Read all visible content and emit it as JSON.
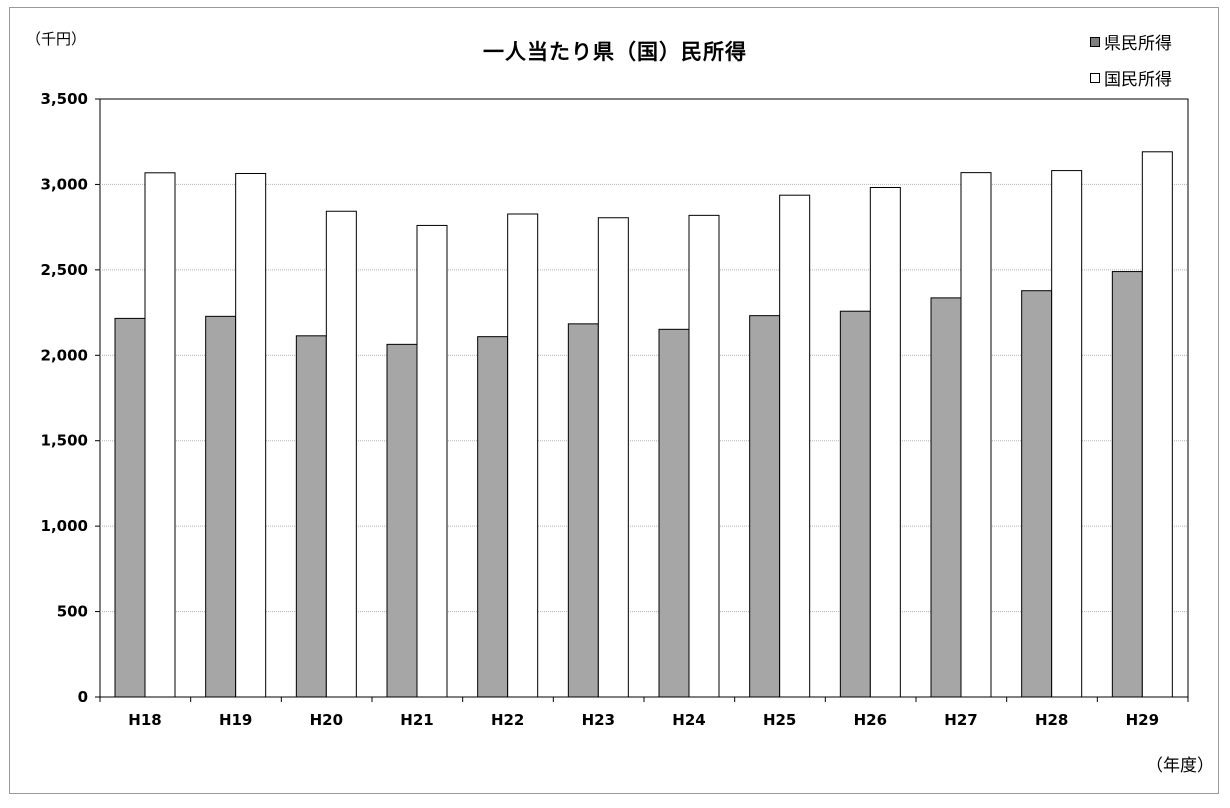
{
  "chart_data": {
    "type": "bar",
    "title": "一人当たり県（国）民所得",
    "ylabel": "（千円）",
    "xlabel": "（年度）",
    "ylim": [
      0,
      3500
    ],
    "yticks": [
      "0",
      "500",
      "1,000",
      "1,500",
      "2,000",
      "2,500",
      "3,000",
      "3,500"
    ],
    "ytick_values": [
      0,
      500,
      1000,
      1500,
      2000,
      2500,
      3000,
      3500
    ],
    "categories": [
      "H18",
      "H19",
      "H20",
      "H21",
      "H22",
      "H23",
      "H24",
      "H25",
      "H26",
      "H27",
      "H28",
      "H29"
    ],
    "series": [
      {
        "name": "県民所得",
        "color": "#a6a6a6",
        "values": [
          2216,
          2228,
          2114,
          2064,
          2109,
          2184,
          2152,
          2232,
          2258,
          2336,
          2378,
          2490
        ]
      },
      {
        "name": "国民所得",
        "color": "#ffffff",
        "values": [
          3068,
          3064,
          2843,
          2760,
          2827,
          2805,
          2819,
          2937,
          2982,
          3069,
          3081,
          3191
        ]
      }
    ],
    "grid": true,
    "legend": "top-right"
  }
}
